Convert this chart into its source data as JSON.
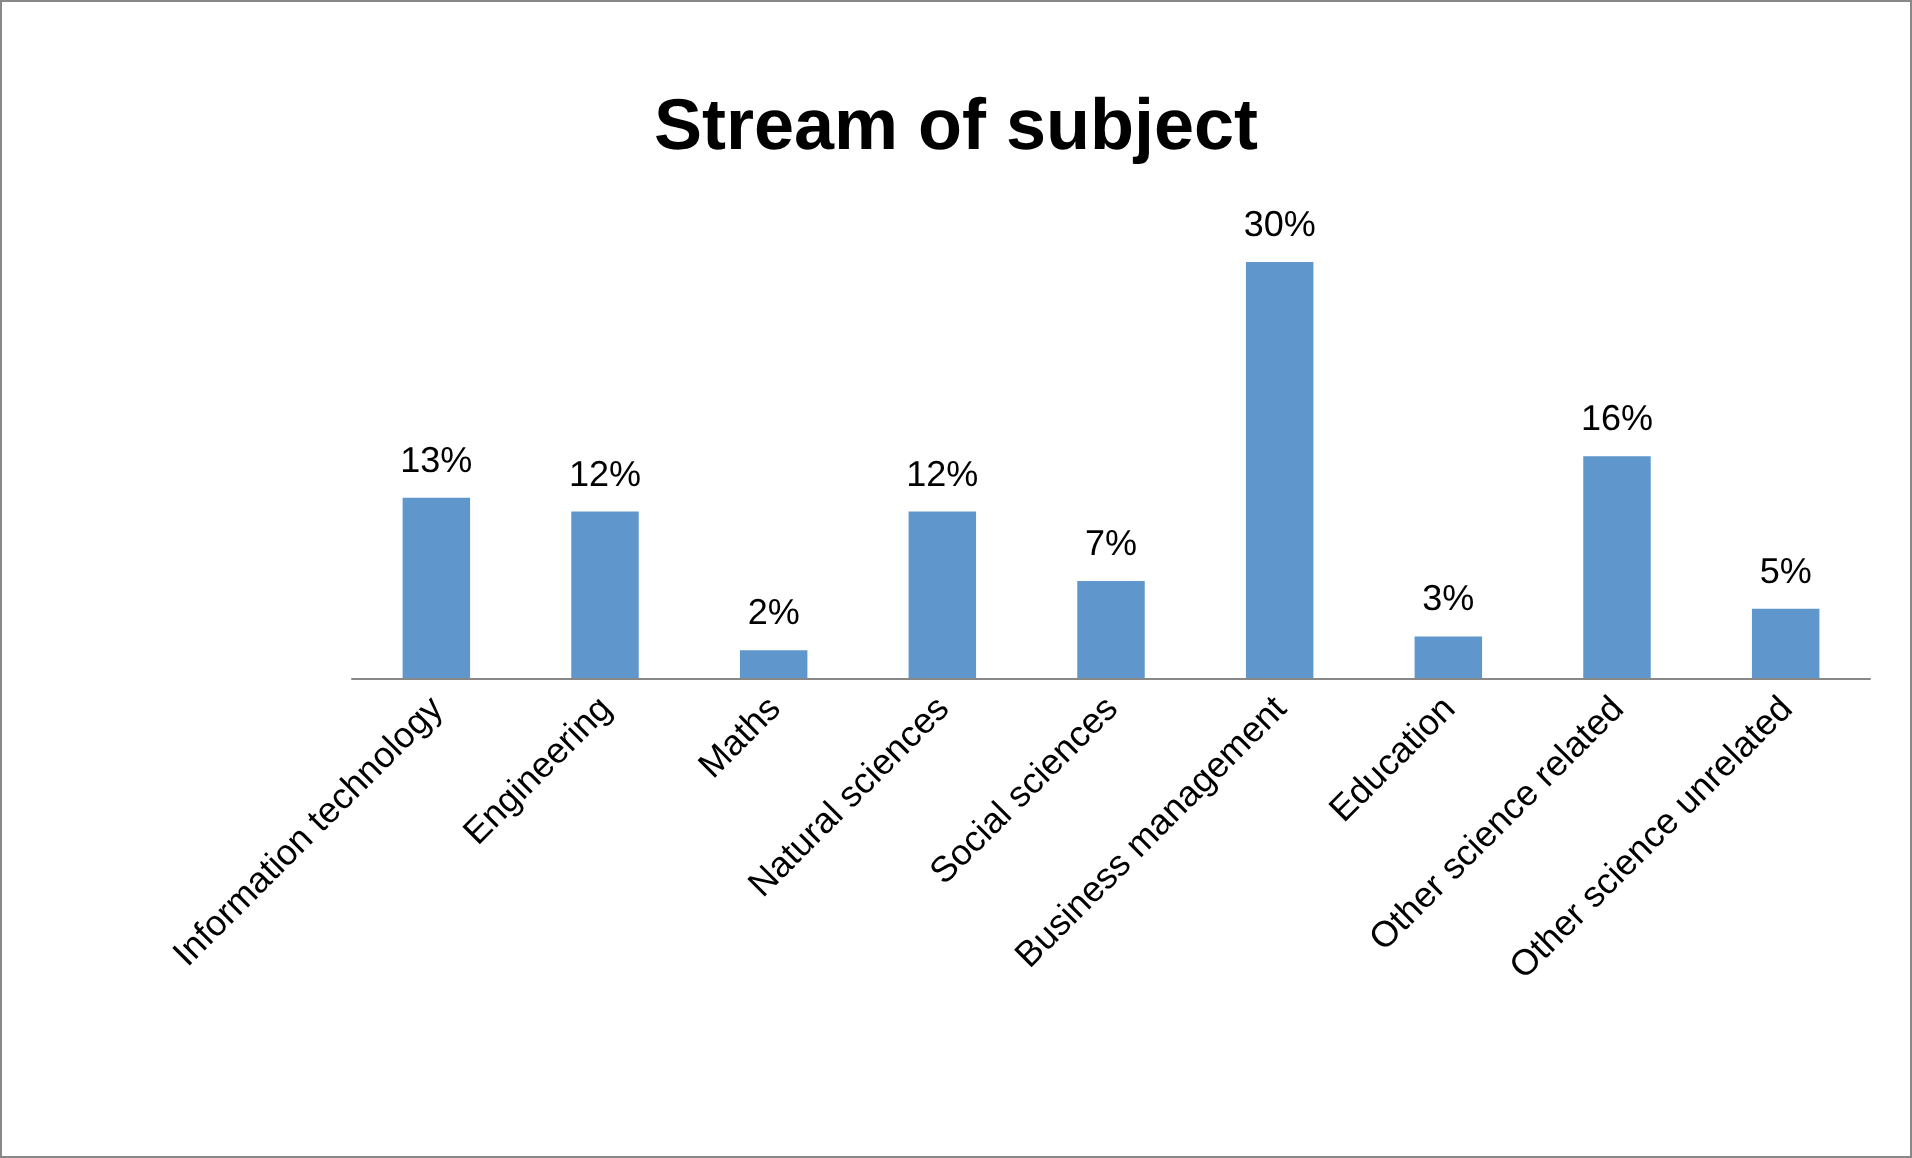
{
  "chart_data": {
    "type": "bar",
    "title": "Stream of subject",
    "categories": [
      "Information technology",
      "Engineering",
      "Maths",
      "Natural sciences",
      "Social sciences",
      "Business management",
      "Education",
      "Other science related",
      "Other science unrelated"
    ],
    "values": [
      13,
      12,
      2,
      12,
      7,
      30,
      3,
      16,
      5
    ],
    "value_labels": [
      "13%",
      "12%",
      "2%",
      "12%",
      "7%",
      "30%",
      "3%",
      "16%",
      "5%"
    ],
    "color": "#5f96cc",
    "tick_labels": "x"
  }
}
